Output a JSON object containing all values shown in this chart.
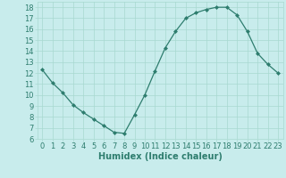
{
  "x": [
    0,
    1,
    2,
    3,
    4,
    5,
    6,
    7,
    8,
    9,
    10,
    11,
    12,
    13,
    14,
    15,
    16,
    17,
    18,
    19,
    20,
    21,
    22,
    23
  ],
  "y": [
    12.3,
    11.1,
    10.2,
    9.1,
    8.4,
    7.8,
    7.2,
    6.6,
    6.5,
    8.2,
    10.0,
    12.2,
    14.3,
    15.8,
    17.0,
    17.5,
    17.8,
    18.0,
    18.0,
    17.3,
    15.8,
    13.8,
    12.8,
    12.0
  ],
  "line_color": "#2e7d6e",
  "marker": "D",
  "marker_size": 2,
  "bg_color": "#c8ecec",
  "grid_color": "#a8d8d0",
  "xlabel": "Humidex (Indice chaleur)",
  "ylim": [
    6,
    18.5
  ],
  "yticks": [
    6,
    7,
    8,
    9,
    10,
    11,
    12,
    13,
    14,
    15,
    16,
    17,
    18
  ],
  "xticks": [
    0,
    1,
    2,
    3,
    4,
    5,
    6,
    7,
    8,
    9,
    10,
    11,
    12,
    13,
    14,
    15,
    16,
    17,
    18,
    19,
    20,
    21,
    22,
    23
  ],
  "font_color": "#2e7d6e",
  "tick_fontsize": 6,
  "label_fontsize": 7
}
